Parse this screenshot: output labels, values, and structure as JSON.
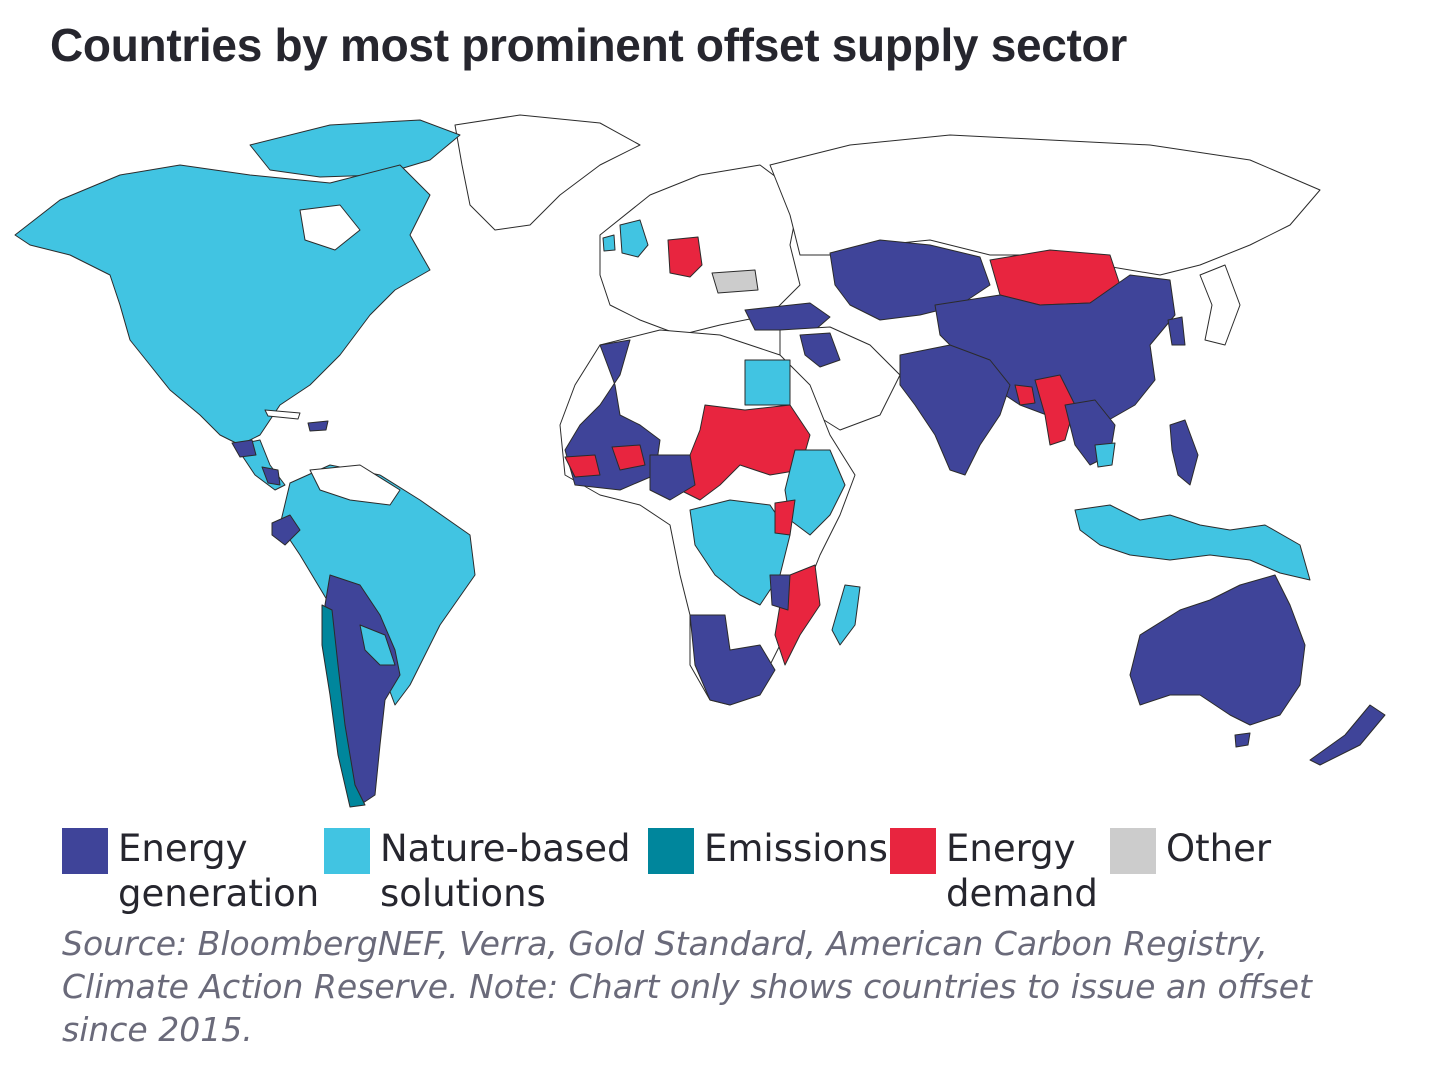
{
  "title": "Countries by most prominent offset supply sector",
  "colors": {
    "energy_generation": "#3f4499",
    "nature_based": "#41c4e2",
    "emissions": "#00869c",
    "energy_demand": "#e8253f",
    "other": "#cccccc",
    "no_data": "#ffffff"
  },
  "legend": [
    {
      "key": "energy_generation",
      "line1": "Energy",
      "line2": "generation"
    },
    {
      "key": "nature_based",
      "line1": "Nature-based",
      "line2": "solutions"
    },
    {
      "key": "emissions",
      "line1": "Emissions",
      "line2": ""
    },
    {
      "key": "energy_demand",
      "line1": "Energy",
      "line2": "demand"
    },
    {
      "key": "other",
      "line1": "Other",
      "line2": ""
    }
  ],
  "source": "Source: BloombergNEF, Verra, Gold Standard, American Carbon Registry, Climate Action Reserve. Note: Chart only shows countries to issue an offset since 2015."
}
